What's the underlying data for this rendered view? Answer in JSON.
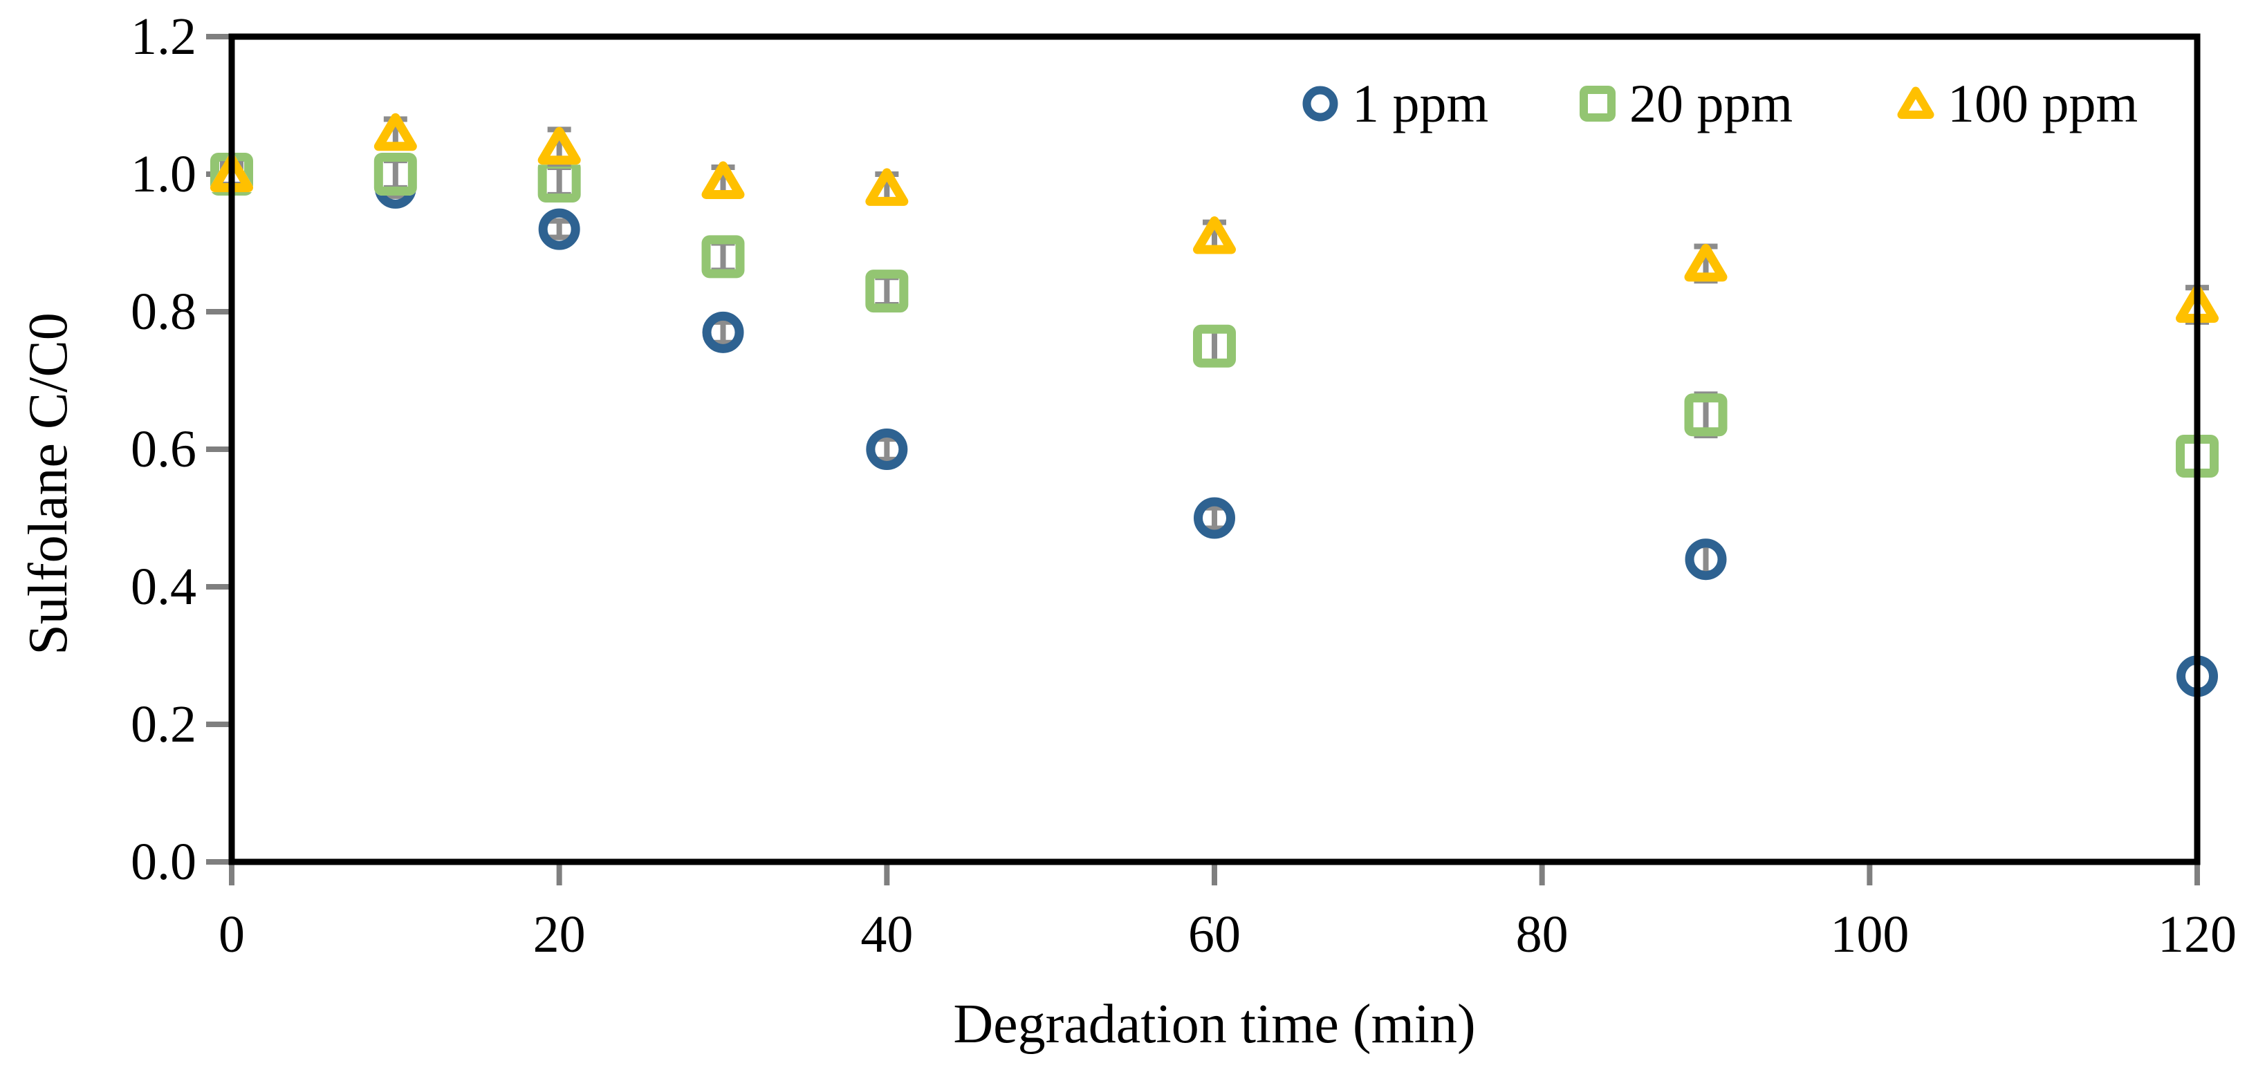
{
  "figure": {
    "background": "#ffffff",
    "text_color": "#000000"
  },
  "chart_data": {
    "type": "scatter",
    "title": "",
    "xlabel": "Degradation time (min)",
    "ylabel": "Sulfolane C/C0",
    "xlim": [
      0,
      120
    ],
    "ylim": [
      0.0,
      1.2
    ],
    "xticks": [
      0,
      20,
      40,
      60,
      80,
      100,
      120
    ],
    "xtick_labels": [
      "0",
      "20",
      "40",
      "60",
      "80",
      "100",
      "120"
    ],
    "yticks": [
      0.0,
      0.2,
      0.4,
      0.6,
      0.8,
      1.0,
      1.2
    ],
    "ytick_labels": [
      "0.0",
      "0.2",
      "0.4",
      "0.6",
      "0.8",
      "1.0",
      "1.2"
    ],
    "grid": false,
    "legend_position": "top-right-inside",
    "x": [
      0,
      10,
      20,
      30,
      40,
      60,
      90,
      120
    ],
    "series": [
      {
        "name": "1 ppm",
        "marker": "circle",
        "color": "#2E6291",
        "values": [
          1.0,
          0.98,
          0.92,
          0.77,
          0.6,
          0.5,
          0.44,
          0.27
        ],
        "yerr": [
          0.01,
          0.012,
          0.012,
          0.015,
          0.015,
          0.015,
          0.02,
          0.02
        ]
      },
      {
        "name": "20 ppm",
        "marker": "square",
        "color": "#93C572",
        "values": [
          1.0,
          1.0,
          0.99,
          0.88,
          0.83,
          0.75,
          0.65,
          0.59
        ],
        "yerr": [
          0.01,
          0.02,
          0.02,
          0.02,
          0.02,
          0.025,
          0.03,
          0.025
        ]
      },
      {
        "name": "100 ppm",
        "marker": "triangle",
        "color": "#FFC000",
        "values": [
          1.0,
          1.06,
          1.04,
          0.99,
          0.98,
          0.91,
          0.87,
          0.81
        ],
        "yerr": [
          0.015,
          0.02,
          0.025,
          0.02,
          0.02,
          0.02,
          0.025,
          0.025
        ]
      }
    ],
    "error_bar_color": "#8C8C8C",
    "axis_color": "#000000",
    "tick_color": "#7F7F7F"
  }
}
